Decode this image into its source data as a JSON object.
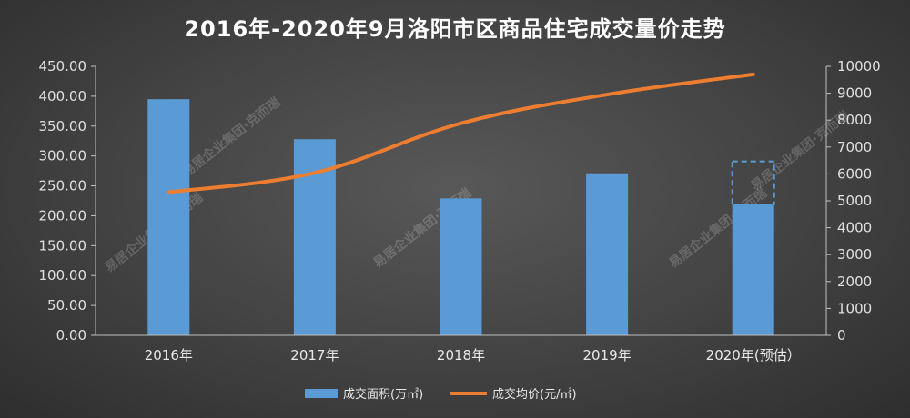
{
  "chart_data": {
    "type": "bar+line",
    "title": "2016年-2020年9月洛阳市区商品住宅成交量价走势",
    "categories": [
      "2016年",
      "2017年",
      "2018年",
      "2019年",
      "2020年(预估）"
    ],
    "series": [
      {
        "name": "成交面积(万㎡)",
        "type": "bar",
        "axis": "left",
        "color": "#5b9bd5",
        "values": [
          395,
          328,
          229,
          271,
          219
        ],
        "forecast_outline_value": 291
      },
      {
        "name": "成交均价(元/㎡)",
        "type": "line",
        "axis": "right",
        "color": "#ed7d31",
        "values": [
          5320,
          6040,
          7880,
          8950,
          9700
        ]
      }
    ],
    "left_axis": {
      "ylim": [
        0,
        450
      ],
      "ticks": [
        "0.00",
        "50.00",
        "100.00",
        "150.00",
        "200.00",
        "250.00",
        "300.00",
        "350.00",
        "400.00",
        "450.00"
      ]
    },
    "right_axis": {
      "ylim": [
        0,
        10000
      ],
      "ticks": [
        "0",
        "1000",
        "2000",
        "3000",
        "4000",
        "5000",
        "6000",
        "7000",
        "8000",
        "9000",
        "10000"
      ]
    },
    "grid": false,
    "legend_position": "bottom-center"
  },
  "watermark": {
    "text": "易居企业集团·克而瑞"
  },
  "colors": {
    "background": "#474747",
    "axis": "#bfbfbf"
  }
}
